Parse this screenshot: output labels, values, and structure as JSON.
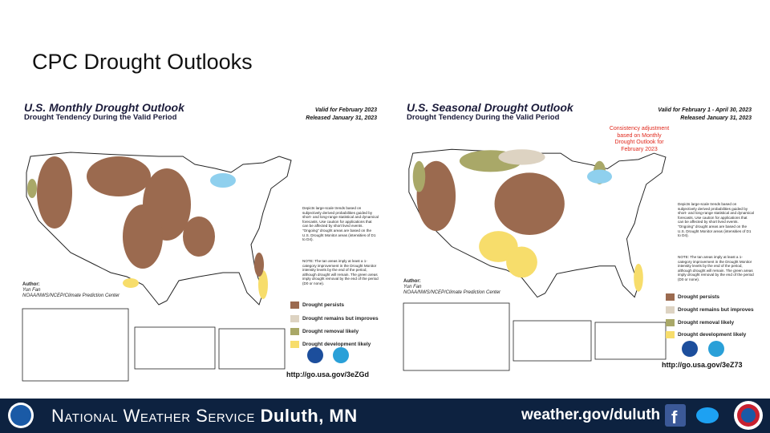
{
  "title": "CPC Drought Outlooks",
  "panels": [
    {
      "title": "U.S. Monthly Drought Outlook",
      "subtitle": "Drought Tendency During the Valid Period",
      "valid": "Valid for February 2023",
      "released": "Released January 31, 2023",
      "description": "Depicts large-scale trends based on subjectively derived probabilities guided by short- and long-range statistical and dynamical forecasts. Use caution for applications that can be affected by short lived events. \"Ongoing\" drought areas are based on the U.S. Drought Monitor areas (intensities of D1 to D4).",
      "note": "NOTE: The tan areas imply at least a 1-category improvement in the Drought Monitor intensity levels by the end of the period, although drought will remain. The green areas imply drought removal by the end of the period (D0 or none).",
      "author_label": "Author:",
      "author": "Yun Fan",
      "agency": "NOAA/NWS/NCEP/Climate Prediction Center",
      "legend": [
        {
          "label": "Drought persists",
          "color": "#9b6a4f"
        },
        {
          "label": "Drought remains but improves",
          "color": "#ddd3c2"
        },
        {
          "label": "Drought removal likely",
          "color": "#a9a868"
        },
        {
          "label": "Drought development likely",
          "color": "#f7dd6b"
        }
      ],
      "url": "http://go.usa.gov/3eZGd"
    },
    {
      "title": "U.S. Seasonal Drought Outlook",
      "subtitle": "Drought Tendency During the Valid Period",
      "valid": "Valid for February 1 - April 30, 2023",
      "released": "Released January 31, 2023",
      "annotation": "Consistency adjustment based on Monthly Drought Outlook for February 2023",
      "description": "Depicts large-scale trends based on subjectively derived probabilities guided by short- and long-range statistical and dynamical forecasts. Use caution for applications that can be affected by short lived events. \"Ongoing\" drought areas are based on the U.S. Drought Monitor areas (intensities of D1 to D4).",
      "note": "NOTE: The tan areas imply at least a 1-category improvement in the Drought Monitor intensity levels by the end of the period, although drought will remain. The green areas imply drought removal by the end of the period (D0 or none).",
      "author_label": "Author:",
      "author": "Yun Fan",
      "agency": "NOAA/NWS/NCEP/Climate Prediction Center",
      "legend": [
        {
          "label": "Drought persists",
          "color": "#9b6a4f"
        },
        {
          "label": "Drought remains but improves",
          "color": "#ddd3c2"
        },
        {
          "label": "Drought removal likely",
          "color": "#a9a868"
        },
        {
          "label": "Drought development likely",
          "color": "#f7dd6b"
        }
      ],
      "url": "http://go.usa.gov/3eZ73"
    }
  ],
  "footer": {
    "org": "National Weather Service",
    "office": "Duluth, MN",
    "website": "weather.gov/duluth"
  }
}
